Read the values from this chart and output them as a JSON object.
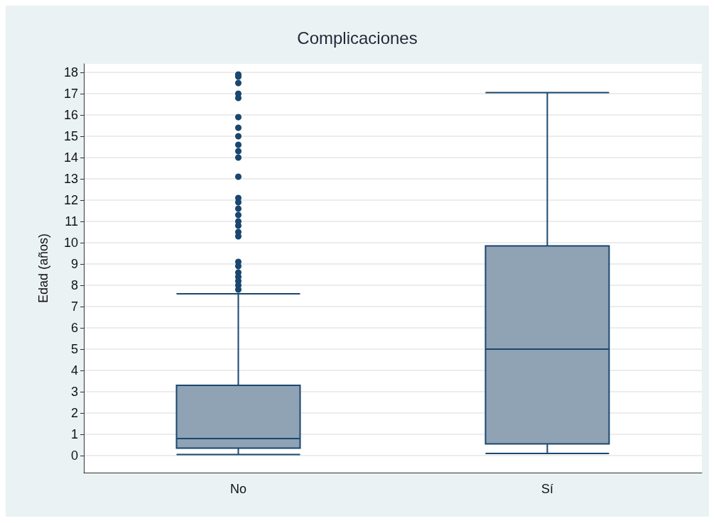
{
  "chart_data": {
    "type": "box",
    "title": "Complicaciones",
    "ylabel": "Edad (años)",
    "categories": [
      "No",
      "Sí"
    ],
    "boxes": [
      {
        "low": 0.05,
        "q1": 0.35,
        "median": 0.8,
        "q3": 3.3,
        "high": 7.6,
        "outliers": [
          7.8,
          8.0,
          8.2,
          8.4,
          8.6,
          8.9,
          9.1,
          10.3,
          10.5,
          10.8,
          11.0,
          11.3,
          11.6,
          11.9,
          12.1,
          13.1,
          14.0,
          14.3,
          14.6,
          15.0,
          15.4,
          15.9,
          16.8,
          17.0,
          17.5,
          17.8,
          17.9
        ]
      },
      {
        "low": 0.1,
        "q1": 0.55,
        "median": 5.0,
        "q3": 9.85,
        "high": 17.05
      }
    ],
    "color": "#8fa3b5",
    "ylim": [
      -0.8,
      18.4
    ],
    "yticks": [
      0,
      1,
      2,
      3,
      4,
      5,
      6,
      7,
      8,
      9,
      10,
      11,
      12,
      13,
      14,
      15,
      16,
      17,
      18
    ],
    "grid": "y"
  }
}
